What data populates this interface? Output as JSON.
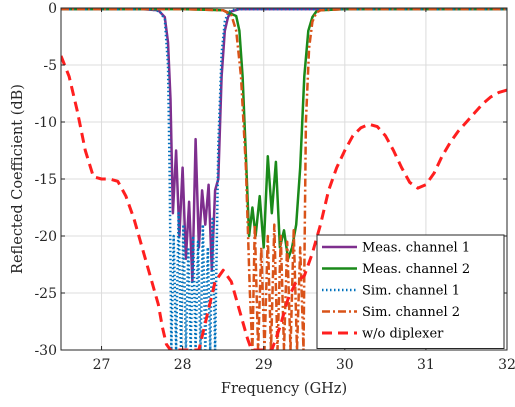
{
  "chart_data": {
    "type": "line",
    "xlabel": "Frequency (GHz)",
    "ylabel": "Reflected Coefficient (dB)",
    "xlim": [
      26.5,
      32
    ],
    "ylim": [
      -30,
      0
    ],
    "xticks": [
      27,
      28,
      29,
      30,
      31,
      32
    ],
    "yticks": [
      0,
      -5,
      -10,
      -15,
      -20,
      -25,
      -30
    ],
    "xtick_labels": [
      "27",
      "28",
      "29",
      "30",
      "31",
      "32"
    ],
    "ytick_labels": [
      "0",
      "-5",
      "-10",
      "-15",
      "-20",
      "-25",
      "-30"
    ],
    "grid": true,
    "legend_position": "bottom-right",
    "series": [
      {
        "name": "Meas. channel 1",
        "color": "#7E2F8E",
        "style": "solid",
        "x": [
          26.5,
          27.5,
          27.7,
          27.78,
          27.82,
          27.85,
          27.88,
          27.92,
          27.96,
          28.0,
          28.04,
          28.08,
          28.12,
          28.16,
          28.2,
          28.24,
          28.28,
          28.32,
          28.36,
          28.4,
          28.44,
          28.48,
          28.52,
          28.56,
          28.6,
          28.7,
          29.0,
          30.0,
          32.0
        ],
        "y": [
          -0.1,
          -0.1,
          -0.2,
          -0.8,
          -3,
          -8,
          -18,
          -12.5,
          -20,
          -14,
          -22,
          -17,
          -24,
          -11.5,
          -21,
          -16,
          -19,
          -15.5,
          -23,
          -16,
          -15,
          -6,
          -2,
          -0.8,
          -0.3,
          -0.1,
          -0.1,
          -0.1,
          -0.1
        ]
      },
      {
        "name": "Meas. channel 2",
        "color": "#1A8A1A",
        "style": "solid",
        "x": [
          26.5,
          28.0,
          28.5,
          28.66,
          28.7,
          28.74,
          28.78,
          28.82,
          28.86,
          28.9,
          28.95,
          29.0,
          29.05,
          29.1,
          29.15,
          29.2,
          29.25,
          29.3,
          29.35,
          29.4,
          29.45,
          29.5,
          29.55,
          29.6,
          29.65,
          29.7,
          30.0,
          32.0
        ],
        "y": [
          -0.1,
          -0.1,
          -0.2,
          -0.7,
          -2,
          -6,
          -13,
          -20,
          -17.5,
          -20,
          -16.5,
          -21,
          -13,
          -18,
          -13.5,
          -21,
          -19.5,
          -22,
          -21,
          -19,
          -14,
          -6,
          -2,
          -0.8,
          -0.3,
          -0.2,
          -0.1,
          -0.1
        ]
      },
      {
        "name": "Sim. channel 1",
        "color": "#0072BD",
        "style": "dotted",
        "x": [
          26.5,
          27.6,
          27.72,
          27.78,
          27.82,
          27.84,
          27.86,
          27.89,
          27.92,
          27.95,
          27.98,
          28.01,
          28.04,
          28.07,
          28.1,
          28.13,
          28.16,
          28.19,
          28.22,
          28.25,
          28.28,
          28.31,
          28.34,
          28.37,
          28.4,
          28.44,
          28.48,
          28.52,
          28.56,
          28.6,
          28.7,
          29.0,
          32.0
        ],
        "y": [
          -0.1,
          -0.1,
          -0.3,
          -1,
          -5,
          -15,
          -30,
          -20,
          -30,
          -18,
          -30,
          -19,
          -30,
          -21,
          -30,
          -20,
          -30,
          -20.5,
          -30,
          -19,
          -30,
          -21,
          -30,
          -18.5,
          -30,
          -12,
          -4,
          -1.2,
          -0.4,
          -0.2,
          -0.1,
          -0.1,
          -0.1
        ]
      },
      {
        "name": "Sim. channel 2",
        "color": "#D95319",
        "style": "dashdot",
        "x": [
          26.5,
          28.0,
          28.5,
          28.6,
          28.66,
          28.72,
          28.78,
          28.83,
          28.86,
          28.89,
          28.93,
          28.97,
          29.01,
          29.05,
          29.09,
          29.13,
          29.17,
          29.21,
          29.25,
          29.29,
          29.33,
          29.37,
          29.41,
          29.45,
          29.49,
          29.52,
          29.56,
          29.6,
          29.65,
          29.7,
          30.0,
          32.0
        ],
        "y": [
          -0.1,
          -0.1,
          -0.2,
          -0.6,
          -2,
          -6,
          -14,
          -25,
          -30,
          -19,
          -30,
          -21,
          -30,
          -20,
          -30,
          -19,
          -30,
          -20,
          -30,
          -20.5,
          -30,
          -19.5,
          -30,
          -21,
          -30,
          -10,
          -3.5,
          -1.2,
          -0.4,
          -0.2,
          -0.1,
          -0.1
        ]
      },
      {
        "name": "w/o diplexer",
        "color": "#FF1F1F",
        "style": "dashed",
        "x": [
          26.5,
          26.6,
          26.7,
          26.8,
          26.9,
          27.0,
          27.1,
          27.2,
          27.3,
          27.4,
          27.5,
          27.6,
          27.7,
          27.75,
          27.8,
          27.85,
          28.2,
          28.3,
          28.4,
          28.5,
          28.6,
          28.7,
          28.8,
          28.85,
          29.1,
          29.2,
          29.3,
          29.4,
          29.5,
          29.6,
          29.7,
          29.8,
          29.9,
          30.0,
          30.1,
          30.2,
          30.3,
          30.4,
          30.5,
          30.6,
          30.7,
          30.8,
          30.9,
          31.0,
          31.1,
          31.2,
          31.3,
          31.4,
          31.5,
          31.6,
          31.7,
          31.8,
          31.9,
          32.0
        ],
        "y": [
          -4.2,
          -6,
          -9,
          -12.5,
          -14.8,
          -15,
          -15,
          -15.2,
          -16.5,
          -18.5,
          -21,
          -23.5,
          -26,
          -28,
          -29.5,
          -30,
          -30,
          -27,
          -24,
          -23,
          -24,
          -26.5,
          -29,
          -30,
          -30,
          -28,
          -25.5,
          -24,
          -23.5,
          -21.5,
          -19,
          -16,
          -14,
          -12.5,
          -11.2,
          -10.5,
          -10.2,
          -10.4,
          -11.2,
          -12.5,
          -14,
          -15.3,
          -15.8,
          -15.5,
          -14.5,
          -13,
          -11.8,
          -10.8,
          -10,
          -9.2,
          -8.4,
          -7.8,
          -7.4,
          -7.2
        ]
      }
    ]
  }
}
